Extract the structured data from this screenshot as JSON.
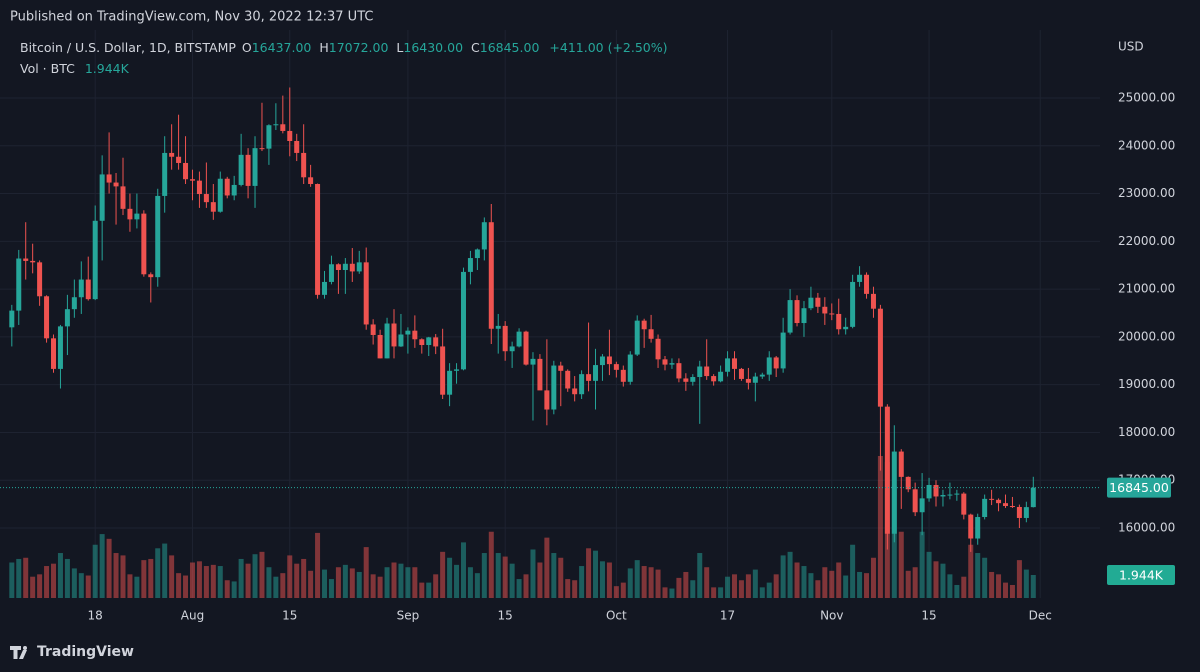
{
  "header": {
    "published": "Published on TradingView.com, Nov 30, 2022 12:37 UTC",
    "symbol": "Bitcoin / U.S. Dollar, 1D, BITSTAMP",
    "ohlc": [
      {
        "key": "O",
        "value": "16437.00"
      },
      {
        "key": "H",
        "value": "17072.00"
      },
      {
        "key": "L",
        "value": "16430.00"
      },
      {
        "key": "C",
        "value": "16845.00"
      }
    ],
    "change": "+411.00 (+2.50%)",
    "volume_name": "Vol · BTC",
    "volume_value": "1.944K"
  },
  "footer": {
    "brand": "TradingView"
  },
  "chart_data": {
    "type": "candlestick",
    "currency": "USD",
    "up_color": "#26a69a",
    "down_color": "#ef5350",
    "volume_up_color": "#26a69a80",
    "volume_down_color": "#ef535080",
    "grid": true,
    "open": [
      20200,
      20550,
      21640,
      21590,
      21560,
      20850,
      19970,
      19330,
      20220,
      20580,
      20830,
      21200,
      20790,
      22430,
      23400,
      23230,
      23150,
      22680,
      22460,
      22580,
      21310,
      21250,
      22950,
      23850,
      23770,
      23640,
      23300,
      23270,
      22990,
      22820,
      22620,
      23310,
      22960,
      23180,
      23810,
      23160,
      23950,
      23940,
      24430,
      24450,
      24310,
      24100,
      23850,
      23340,
      23200,
      20880,
      21150,
      21520,
      21400,
      21530,
      21370,
      21560,
      20260,
      20040,
      19550,
      20280,
      19800,
      20050,
      20130,
      19950,
      19830,
      19990,
      19800,
      18790,
      19290,
      19320,
      21360,
      21650,
      21830,
      22400,
      20170,
      20230,
      19700,
      19800,
      20110,
      19420,
      19540,
      18880,
      18480,
      19400,
      19290,
      18920,
      18800,
      19220,
      19080,
      19410,
      19590,
      19430,
      19310,
      19060,
      19630,
      20340,
      20160,
      19960,
      19530,
      19420,
      19450,
      19130,
      19060,
      19160,
      19380,
      19180,
      19070,
      19270,
      19550,
      19330,
      19120,
      19040,
      19170,
      19210,
      19570,
      19340,
      20090,
      20770,
      20290,
      20600,
      20820,
      20630,
      20490,
      20480,
      20160,
      20210,
      21150,
      21300,
      20900,
      20590,
      18540,
      15880,
      17600,
      17070,
      16810,
      16330,
      16620,
      16900,
      16660,
      16690,
      16700,
      16720,
      16280,
      15780,
      16230,
      16610,
      16590,
      16520,
      16460,
      16440,
      16210,
      16437
    ],
    "high": [
      20670,
      21820,
      22400,
      21950,
      21600,
      20870,
      20050,
      20250,
      20880,
      21200,
      21580,
      21680,
      22750,
      23800,
      24280,
      23430,
      23750,
      23000,
      23000,
      22650,
      21350,
      23100,
      24200,
      24450,
      24650,
      24200,
      23500,
      23460,
      23650,
      23200,
      23460,
      23350,
      23370,
      24250,
      23950,
      24200,
      24900,
      24450,
      24890,
      25050,
      25220,
      24250,
      24450,
      23600,
      23210,
      21380,
      21700,
      21540,
      21650,
      21860,
      21800,
      21870,
      20370,
      20150,
      20400,
      20580,
      20480,
      20200,
      20450,
      19970,
      20000,
      20060,
      20170,
      19450,
      19450,
      21450,
      21800,
      21850,
      22500,
      22780,
      20480,
      20330,
      19900,
      20180,
      20130,
      19680,
      19640,
      19950,
      19500,
      19480,
      19320,
      19180,
      19300,
      20300,
      19750,
      19640,
      20150,
      19480,
      19400,
      19700,
      20450,
      20380,
      20460,
      20050,
      19600,
      19550,
      19550,
      19240,
      19220,
      19500,
      19950,
      19220,
      19400,
      19700,
      19700,
      19350,
      19350,
      19250,
      19250,
      19700,
      19600,
      20400,
      21000,
      20870,
      20750,
      21050,
      20920,
      20830,
      20700,
      20800,
      20400,
      21300,
      21480,
      21350,
      21050,
      20670,
      18590,
      18150,
      17650,
      17080,
      16950,
      17150,
      17050,
      17000,
      16800,
      16950,
      16800,
      16750,
      16300,
      16300,
      16700,
      16800,
      16620,
      16700,
      16650,
      16490,
      16550,
      17072
    ],
    "low": [
      19800,
      20250,
      21200,
      21330,
      20650,
      19880,
      19250,
      18920,
      19620,
      20400,
      20480,
      20760,
      20770,
      21600,
      23000,
      22350,
      22550,
      22200,
      22270,
      21260,
      20720,
      21050,
      22600,
      23500,
      23500,
      23200,
      22860,
      22700,
      22700,
      22450,
      22600,
      22900,
      22860,
      23150,
      22900,
      22700,
      23890,
      23600,
      24330,
      24260,
      23780,
      23680,
      23200,
      23140,
      20800,
      20800,
      21100,
      20900,
      20900,
      21150,
      21320,
      20150,
      19840,
      19550,
      19550,
      19550,
      19790,
      19650,
      19770,
      19650,
      19600,
      19640,
      18700,
      18550,
      19020,
      19300,
      21100,
      21400,
      21600,
      19850,
      19650,
      19500,
      19350,
      19780,
      19400,
      18250,
      18900,
      18150,
      18380,
      18550,
      18850,
      18650,
      18700,
      18860,
      18480,
      19080,
      19200,
      19150,
      18960,
      19000,
      19600,
      19770,
      19880,
      19350,
      19300,
      19330,
      19050,
      18870,
      18980,
      18180,
      19100,
      18980,
      19050,
      19170,
      19100,
      19080,
      18900,
      18650,
      19120,
      19080,
      19160,
      19250,
      20050,
      20220,
      20000,
      20560,
      20500,
      20250,
      20350,
      20050,
      20050,
      20180,
      21050,
      20800,
      20400,
      17200,
      15550,
      15700,
      16400,
      16750,
      16250,
      15850,
      16550,
      16450,
      16450,
      16600,
      16570,
      16180,
      15500,
      15650,
      16180,
      16480,
      16350,
      16420,
      16420,
      16000,
      16120,
      16430
    ],
    "close": [
      20550,
      21640,
      21590,
      21560,
      20850,
      19970,
      19330,
      20220,
      20580,
      20830,
      21200,
      20790,
      22430,
      23400,
      23230,
      23150,
      22680,
      22460,
      22580,
      21310,
      21250,
      22950,
      23850,
      23770,
      23640,
      23300,
      23270,
      22990,
      22820,
      22620,
      23310,
      22960,
      23180,
      23810,
      23160,
      23950,
      23940,
      24430,
      24450,
      24310,
      24100,
      23850,
      23340,
      23200,
      20880,
      21150,
      21520,
      21400,
      21530,
      21370,
      21560,
      20260,
      20040,
      19550,
      20280,
      19800,
      20050,
      20130,
      19950,
      19830,
      19990,
      19800,
      18790,
      19290,
      19320,
      21360,
      21650,
      21830,
      22400,
      20170,
      20230,
      19700,
      19800,
      20110,
      19420,
      19540,
      18880,
      18480,
      19400,
      19290,
      18920,
      18800,
      19220,
      19080,
      19410,
      19590,
      19430,
      19310,
      19060,
      19630,
      20340,
      20160,
      19960,
      19530,
      19420,
      19450,
      19130,
      19060,
      19160,
      19380,
      19180,
      19070,
      19270,
      19550,
      19330,
      19120,
      19040,
      19170,
      19210,
      19570,
      19340,
      20090,
      20770,
      20290,
      20600,
      20820,
      20630,
      20490,
      20480,
      20160,
      20210,
      21150,
      21300,
      20900,
      20590,
      18540,
      15880,
      17600,
      17070,
      16810,
      16330,
      16620,
      16900,
      16660,
      16690,
      16700,
      16720,
      16280,
      15780,
      16230,
      16610,
      16590,
      16520,
      16460,
      16440,
      16210,
      16437,
      16845
    ],
    "volume": [
      3000,
      3300,
      3400,
      1800,
      2000,
      2700,
      2900,
      3800,
      3300,
      2500,
      2100,
      1900,
      4500,
      5400,
      5000,
      3800,
      3600,
      2000,
      1800,
      3200,
      3300,
      4200,
      4600,
      3600,
      2100,
      1900,
      3000,
      3100,
      2700,
      2800,
      2700,
      1500,
      1400,
      3300,
      2900,
      3700,
      3900,
      2600,
      1800,
      2100,
      3600,
      2900,
      3300,
      2300,
      5500,
      2400,
      1600,
      2600,
      2800,
      2500,
      2200,
      4300,
      2000,
      1800,
      2600,
      3000,
      2900,
      2600,
      2600,
      1300,
      1300,
      2000,
      3900,
      3400,
      2800,
      4700,
      2600,
      2100,
      3800,
      5600,
      3800,
      3500,
      2900,
      1600,
      2000,
      4100,
      3000,
      5100,
      3800,
      3400,
      1600,
      1500,
      2700,
      4200,
      4000,
      3100,
      3000,
      1000,
      1300,
      2500,
      3200,
      2700,
      2600,
      2400,
      900,
      800,
      1700,
      2200,
      1500,
      3800,
      2600,
      900,
      900,
      1800,
      2000,
      1500,
      2000,
      2400,
      900,
      1300,
      2000,
      3600,
      3900,
      3000,
      2700,
      2100,
      1500,
      2600,
      2300,
      3000,
      1900,
      4500,
      2200,
      2100,
      3400,
      12000,
      11500,
      9500,
      5600,
      2300,
      2600,
      5600,
      3900,
      3100,
      2900,
      2000,
      1100,
      1800,
      4500,
      3800,
      3400,
      2200,
      2000,
      1300,
      1100,
      3200,
      2400,
      1944
    ],
    "xlim": [
      -1.7,
      156.6
    ],
    "xticks": [
      {
        "value": 12,
        "label": "18"
      },
      {
        "value": 26,
        "label": "Aug"
      },
      {
        "value": 40,
        "label": "15"
      },
      {
        "value": 57,
        "label": "Sep"
      },
      {
        "value": 71,
        "label": "15"
      },
      {
        "value": 87,
        "label": "Oct"
      },
      {
        "value": 103,
        "label": "17"
      },
      {
        "value": 118,
        "label": "Nov"
      },
      {
        "value": 132,
        "label": "15"
      },
      {
        "value": 148,
        "label": "Dec"
      }
    ],
    "ylim": [
      14535,
      26423
    ],
    "yticks": [
      {
        "value": 16000,
        "label": "16000.00"
      },
      {
        "value": 17000,
        "label": "17000.00"
      },
      {
        "value": 18000,
        "label": "18000.00"
      },
      {
        "value": 19000,
        "label": "19000.00"
      },
      {
        "value": 20000,
        "label": "20000.00"
      },
      {
        "value": 21000,
        "label": "21000.00"
      },
      {
        "value": 22000,
        "label": "22000.00"
      },
      {
        "value": 23000,
        "label": "23000.00"
      },
      {
        "value": 24000,
        "label": "24000.00"
      },
      {
        "value": 25000,
        "label": "25000.00"
      }
    ],
    "vlim": [
      0,
      16900
    ],
    "last_price": {
      "value": 16845,
      "label": "16845.00"
    },
    "last_volume": {
      "value": 1944,
      "label": "1.944K"
    }
  }
}
